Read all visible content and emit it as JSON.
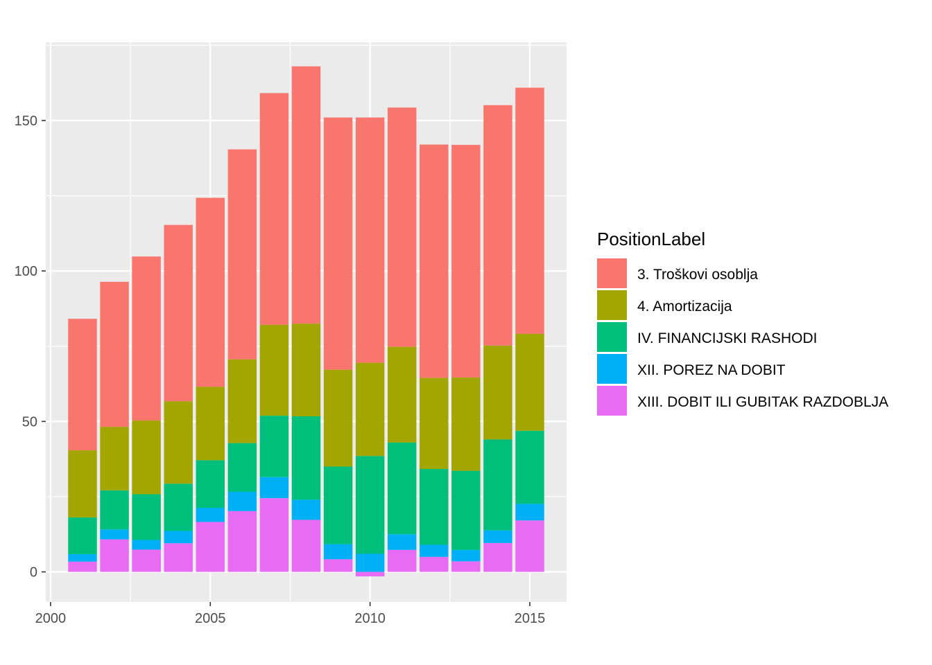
{
  "chart_data": {
    "type": "bar",
    "stacked": true,
    "title": "",
    "xlabel": "",
    "ylabel": "",
    "xlim": [
      1999.85,
      2016.15
    ],
    "ylim": [
      -10,
      176
    ],
    "x_ticks": [
      2000,
      2005,
      2010,
      2015
    ],
    "y_ticks": [
      0,
      50,
      100,
      150
    ],
    "x_tick_labels": [
      "2000",
      "2005",
      "2010",
      "2015"
    ],
    "y_tick_labels": [
      "0",
      "50",
      "100",
      "150"
    ],
    "grid": true,
    "legend": {
      "title": "PositionLabel",
      "position": "right"
    },
    "x": [
      2001,
      2002,
      2003,
      2004,
      2005,
      2006,
      2007,
      2008,
      2009,
      2010,
      2011,
      2012,
      2013,
      2014,
      2015
    ],
    "series": [
      {
        "name": "XIII. DOBIT ILI GUBITAK RAZDOBLJA",
        "color": "#E76BF3",
        "values": [
          3.4,
          10.8,
          7.4,
          9.5,
          16.6,
          20.2,
          24.5,
          17.3,
          4.2,
          -1.5,
          7.3,
          5.0,
          3.5,
          9.6,
          17.1
        ]
      },
      {
        "name": "XII. POREZ NA DOBIT",
        "color": "#00B0F6",
        "values": [
          2.5,
          3.3,
          3.2,
          4.1,
          4.7,
          6.4,
          7.0,
          6.7,
          5.0,
          6.0,
          5.2,
          4.0,
          3.8,
          4.2,
          5.5
        ]
      },
      {
        "name": "IV. FINANCIJSKI RASHODI",
        "color": "#00BF7D",
        "values": [
          12.2,
          13.0,
          15.2,
          15.7,
          15.8,
          16.2,
          20.4,
          27.7,
          25.8,
          32.5,
          30.5,
          25.2,
          26.3,
          30.2,
          24.3
        ]
      },
      {
        "name": "4. Amortizacija",
        "color": "#A3A500",
        "values": [
          22.3,
          21.1,
          24.5,
          27.4,
          24.4,
          27.8,
          30.2,
          30.8,
          32.2,
          31.0,
          31.8,
          30.3,
          31.0,
          31.2,
          32.2
        ]
      },
      {
        "name": "3. Troškovi osoblja",
        "color": "#F8766D",
        "values": [
          43.7,
          48.2,
          54.5,
          58.6,
          62.8,
          69.8,
          77.0,
          85.5,
          83.8,
          81.5,
          79.5,
          77.5,
          77.3,
          79.9,
          81.8
        ]
      }
    ],
    "legend_order": [
      "3. Troškovi osoblja",
      "4. Amortizacija",
      "IV. FINANCIJSKI RASHODI",
      "XII. POREZ NA DOBIT",
      "XIII. DOBIT ILI GUBITAK RAZDOBLJA"
    ]
  }
}
